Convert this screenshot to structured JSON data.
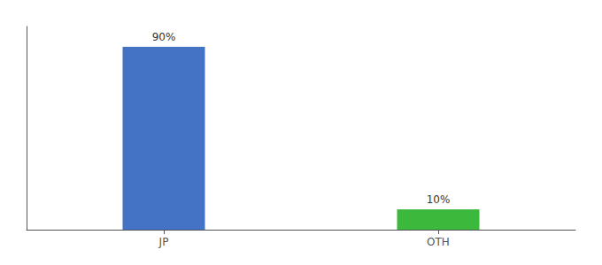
{
  "chart_data": {
    "type": "bar",
    "categories": [
      "JP",
      "OTH"
    ],
    "values": [
      90,
      10
    ],
    "value_labels": [
      "90%",
      "10%"
    ],
    "colors": [
      "#4472C4",
      "#3CB93C"
    ],
    "ylim": [
      0,
      100
    ],
    "data_labels": true,
    "tick_labels": "x",
    "grid": false
  }
}
